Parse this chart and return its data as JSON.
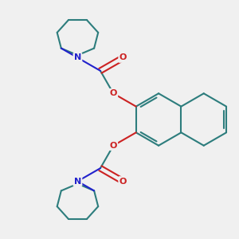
{
  "bg_color": "#f0f0f0",
  "bond_color": "#2d7d7d",
  "nitrogen_color": "#2222cc",
  "oxygen_color": "#cc2222",
  "line_width": 1.5,
  "figsize": [
    3.0,
    3.0
  ],
  "dpi": 100,
  "xlim": [
    -4.5,
    4.5
  ],
  "ylim": [
    -4.5,
    4.5
  ]
}
